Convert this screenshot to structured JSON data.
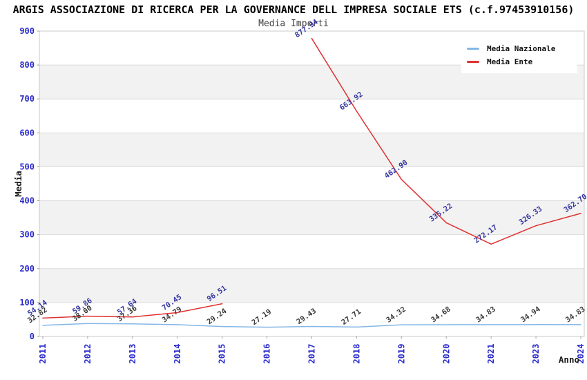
{
  "header": {
    "title": "ARGIS ASSOCIAZIONE DI RICERCA PER LA GOVERNANCE DELL IMPRESA SOCIALE ETS (c.f.97453910156)",
    "subtitle": "Media Importi"
  },
  "chart_data": {
    "type": "line",
    "categories": [
      "2011",
      "2012",
      "2013",
      "2014",
      "2015",
      "2016",
      "2017",
      "2018",
      "2019",
      "2020",
      "2021",
      "2023",
      "2024"
    ],
    "series": [
      {
        "name": "Media Nazionale",
        "color": "#85B7E6",
        "label_color": "#3A3A3A",
        "values": [
          32.82,
          38.0,
          37.36,
          34.79,
          29.24,
          27.19,
          29.43,
          27.71,
          34.32,
          34.68,
          34.83,
          34.94,
          34.83
        ],
        "labels": [
          "32.82",
          "38.00",
          "37.36",
          "34.79",
          "29.24",
          "27.19",
          "29.43",
          "27.71",
          "34.32",
          "34.68",
          "34.83",
          "34.94",
          "34.83"
        ]
      },
      {
        "name": "Media Ente",
        "color": "#E03030",
        "label_color": "#3636A0",
        "values": [
          54.14,
          59.86,
          57.64,
          70.45,
          96.51,
          null,
          877.94,
          663.92,
          462.9,
          335.22,
          272.17,
          326.33,
          362.7
        ],
        "labels": [
          "54.14",
          "59.86",
          "57.64",
          "70.45",
          "96.51",
          null,
          "877.94",
          "663.92",
          "462.90",
          "335.22",
          "272.17",
          "326.33",
          "362.70"
        ]
      }
    ],
    "xlabel": "Anno",
    "ylabel": "Media",
    "ylim": [
      0,
      900
    ],
    "ytick_step": 100,
    "grid": true,
    "legend_position": "top-right",
    "style": {
      "tick_label_color": "#2A2ACC",
      "band_main_color": "#FFFFFF",
      "band_alt_color": "#F2F2F2",
      "gridline_color": "#DCDCDC",
      "border_color": "#C8C8C8",
      "axis_title_color": "#1A1A1A"
    }
  }
}
